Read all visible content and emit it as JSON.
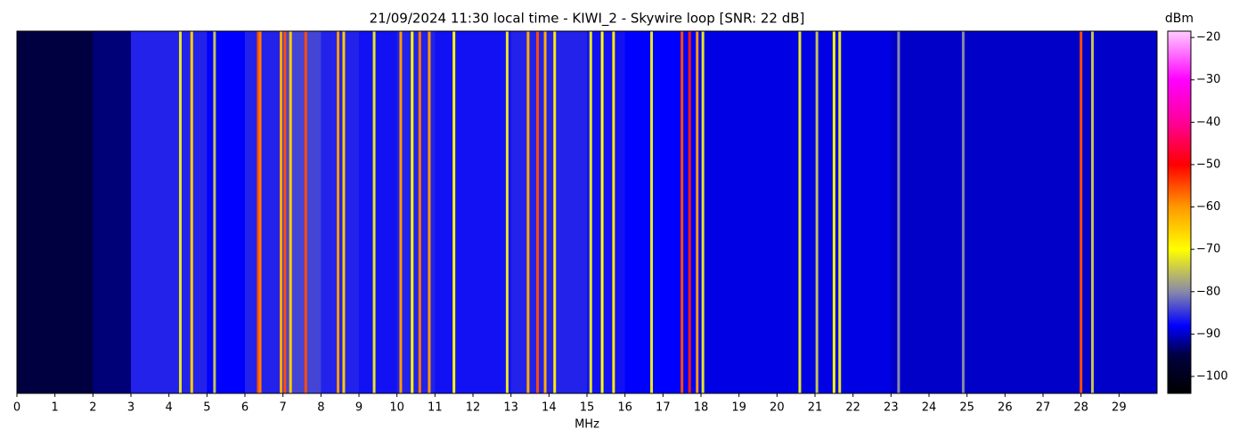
{
  "chart_data": {
    "type": "spectrogram",
    "title": "21/09/2024 11:30 local time - KIWI_2 - Skywire loop [SNR: 22 dB]",
    "x_label": "MHz",
    "colorbar_label": "dBm",
    "xlim": [
      0,
      30
    ],
    "xticks": [
      0,
      1,
      2,
      3,
      4,
      5,
      6,
      7,
      8,
      9,
      10,
      11,
      12,
      13,
      14,
      15,
      16,
      17,
      18,
      19,
      20,
      21,
      22,
      23,
      24,
      25,
      26,
      27,
      28,
      29
    ],
    "clim": [
      -104,
      -18.5
    ],
    "cticks": [
      {
        "value": -20,
        "label": "−20"
      },
      {
        "value": -30,
        "label": "−30"
      },
      {
        "value": -40,
        "label": "−40"
      },
      {
        "value": -50,
        "label": "−50"
      },
      {
        "value": -60,
        "label": "−60"
      },
      {
        "value": -70,
        "label": "−70"
      },
      {
        "value": -80,
        "label": "−80"
      },
      {
        "value": -90,
        "label": "−90"
      },
      {
        "value": -100,
        "label": "−100"
      }
    ],
    "colorscale": [
      [
        -104,
        "#000000"
      ],
      [
        -95,
        "#000040"
      ],
      [
        -88,
        "#0000ff"
      ],
      [
        -80,
        "#8888aa"
      ],
      [
        -70,
        "#ffff00"
      ],
      [
        -60,
        "#ff9900"
      ],
      [
        -50,
        "#ff0000"
      ],
      [
        -40,
        "#ff0099"
      ],
      [
        -30,
        "#ff00ff"
      ],
      [
        -18.5,
        "#ffccff"
      ]
    ],
    "floor": {
      "x": [
        0,
        1,
        2,
        3,
        4,
        5,
        6,
        7,
        8,
        9,
        10,
        11,
        12,
        13,
        14,
        15,
        16,
        17,
        18,
        19,
        20,
        21,
        22,
        23,
        24,
        25,
        26,
        27,
        28,
        29
      ],
      "values": [
        -95,
        -95,
        -93,
        -86,
        -86,
        -88,
        -86,
        -84,
        -86,
        -87,
        -86,
        -87,
        -87,
        -86,
        -86,
        -87,
        -88,
        -88,
        -89,
        -89,
        -89,
        -89,
        -89,
        -90,
        -90,
        -90,
        -90,
        -90,
        -90,
        -90
      ]
    },
    "signals": {
      "x": [
        4.3,
        4.6,
        5.2,
        6.35,
        6.4,
        6.95,
        7.05,
        7.2,
        7.6,
        8.45,
        8.6,
        9.4,
        10.1,
        10.4,
        10.6,
        10.85,
        11.5,
        12.9,
        13.45,
        13.7,
        13.9,
        14.15,
        15.1,
        15.4,
        15.7,
        16.7,
        17.5,
        17.7,
        17.9,
        18.05,
        20.6,
        21.05,
        21.5,
        21.65,
        23.2,
        24.9,
        28.0,
        28.3
      ],
      "values": [
        -72,
        -65,
        -75,
        -55,
        -58,
        -62,
        -55,
        -65,
        -55,
        -60,
        -65,
        -72,
        -60,
        -70,
        -58,
        -60,
        -70,
        -72,
        -62,
        -55,
        -62,
        -68,
        -72,
        -70,
        -68,
        -72,
        -55,
        -52,
        -60,
        -72,
        -72,
        -75,
        -70,
        -72,
        -80,
        -80,
        -55,
        -75
      ]
    }
  }
}
